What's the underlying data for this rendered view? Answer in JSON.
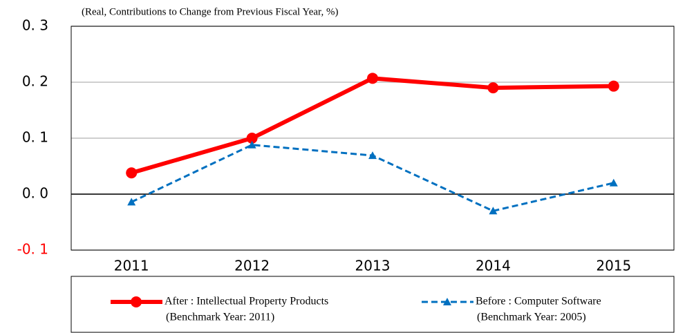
{
  "chart_data": {
    "type": "line",
    "subtitle": "(Real, Contributions to Change from Previous Fiscal Year, %)",
    "categories": [
      "2011",
      "2012",
      "2013",
      "2014",
      "2015"
    ],
    "series": [
      {
        "name": "After : Intellectual Property Products",
        "note": "(Benchmark Year: 2011)",
        "color": "#ff0000",
        "line_style": "solid",
        "marker": "circle",
        "values": [
          0.038,
          0.1,
          0.207,
          0.19,
          0.193
        ]
      },
      {
        "name": "Before : Computer Software",
        "note": "(Benchmark Year: 2005)",
        "color": "#0070c0",
        "line_style": "dashed",
        "marker": "triangle",
        "values": [
          -0.014,
          0.088,
          0.069,
          -0.03,
          0.02
        ]
      }
    ],
    "ylim": [
      -0.1,
      0.3
    ],
    "yticks": [
      {
        "value": -0.1,
        "label": "-0. 1"
      },
      {
        "value": 0.0,
        "label": "0. 0"
      },
      {
        "value": 0.1,
        "label": "0. 1"
      },
      {
        "value": 0.2,
        "label": "0. 2"
      },
      {
        "value": 0.3,
        "label": "0. 3"
      }
    ],
    "negative_tick_color": "#ff0000",
    "grid": true,
    "legend": "bottom"
  }
}
